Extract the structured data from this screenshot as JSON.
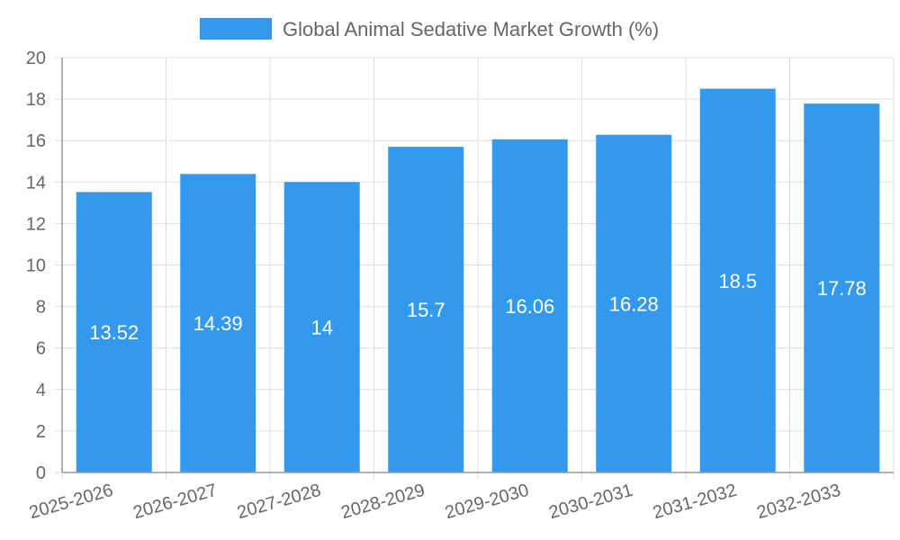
{
  "chart_data": {
    "type": "bar",
    "categories": [
      "2025-2026",
      "2026-2027",
      "2027-2028",
      "2028-2029",
      "2029-2030",
      "2030-2031",
      "2031-2032",
      "2032-2033"
    ],
    "series": [
      {
        "name": "Global Animal Sedative Market Growth (%)",
        "values": [
          13.52,
          14.39,
          14,
          15.7,
          16.06,
          16.28,
          18.5,
          17.78
        ],
        "value_labels": [
          "13.52",
          "14.39",
          "14",
          "15.7",
          "16.06",
          "16.28",
          "18.5",
          "17.78"
        ],
        "color": "#3399ee"
      }
    ],
    "ylim": [
      0,
      20
    ],
    "y_ticks": [
      "0",
      "2",
      "4",
      "6",
      "8",
      "10",
      "12",
      "14",
      "16",
      "18",
      "20"
    ],
    "grid": true,
    "legend": "top",
    "colors": {
      "grid": "#dddddd",
      "axis": "#999999",
      "text": "#666666",
      "label": "#ffffff"
    }
  }
}
